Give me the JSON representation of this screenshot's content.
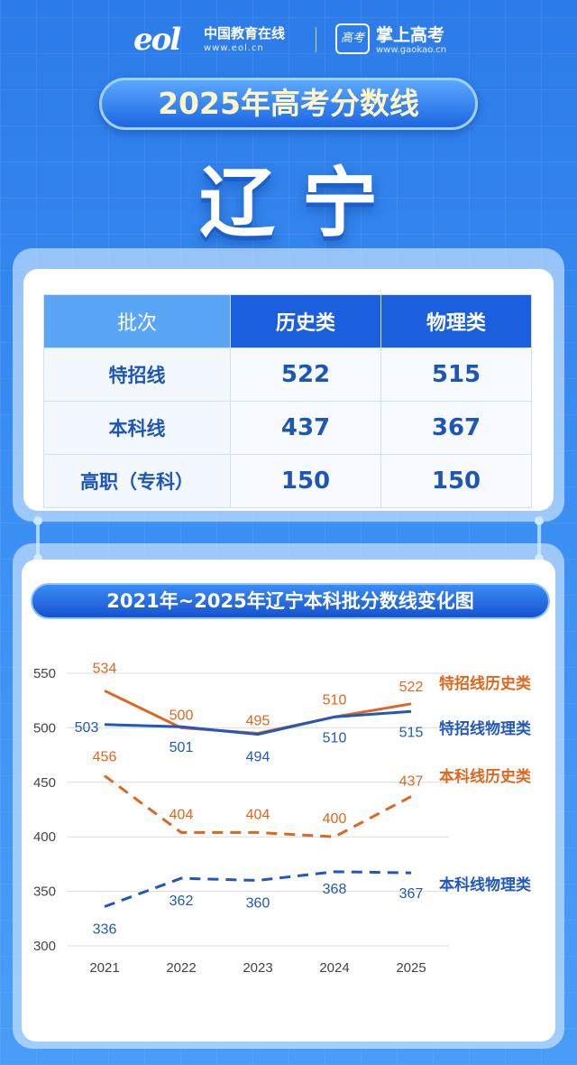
{
  "header": {
    "eol_mark": "eol",
    "eol_name": "中国教育在线",
    "eol_url": "www.eol.cn",
    "gaokao_badge": "高考",
    "gaokao_name": "掌上高考",
    "gaokao_url": "www.gaokao.cn"
  },
  "title": "2025年高考分数线",
  "province": "辽宁",
  "table": {
    "headers": [
      "批次",
      "历史类",
      "物理类"
    ],
    "rows": [
      {
        "batch": "特招线",
        "history": "522",
        "physics": "515"
      },
      {
        "batch": "本科线",
        "history": "437",
        "physics": "367"
      },
      {
        "batch": "高职（专科）",
        "history": "150",
        "physics": "150"
      }
    ]
  },
  "colors": {
    "orange": "#e0661f",
    "blue": "#2058c0"
  },
  "chart_data": {
    "type": "line",
    "title": "2021年~2025年辽宁本科批分数线变化图",
    "categories": [
      "2021",
      "2022",
      "2023",
      "2024",
      "2025"
    ],
    "ylim": [
      300,
      550
    ],
    "yticks": [
      550,
      500,
      450,
      400,
      350,
      300
    ],
    "grid": "horizontal",
    "legend": "right-inline",
    "series": [
      {
        "name": "特招线历史类",
        "color": "#e0661f",
        "style": "solid",
        "values": [
          534,
          500,
          495,
          510,
          522
        ]
      },
      {
        "name": "特招线物理类",
        "color": "#2058c0",
        "style": "solid",
        "values": [
          503,
          501,
          494,
          510,
          515
        ]
      },
      {
        "name": "本科线历史类",
        "color": "#e0661f",
        "style": "dashed",
        "values": [
          456,
          404,
          404,
          400,
          437
        ]
      },
      {
        "name": "本科线物理类",
        "color": "#2058c0",
        "style": "dashed",
        "values": [
          336,
          362,
          360,
          368,
          367
        ]
      }
    ]
  }
}
